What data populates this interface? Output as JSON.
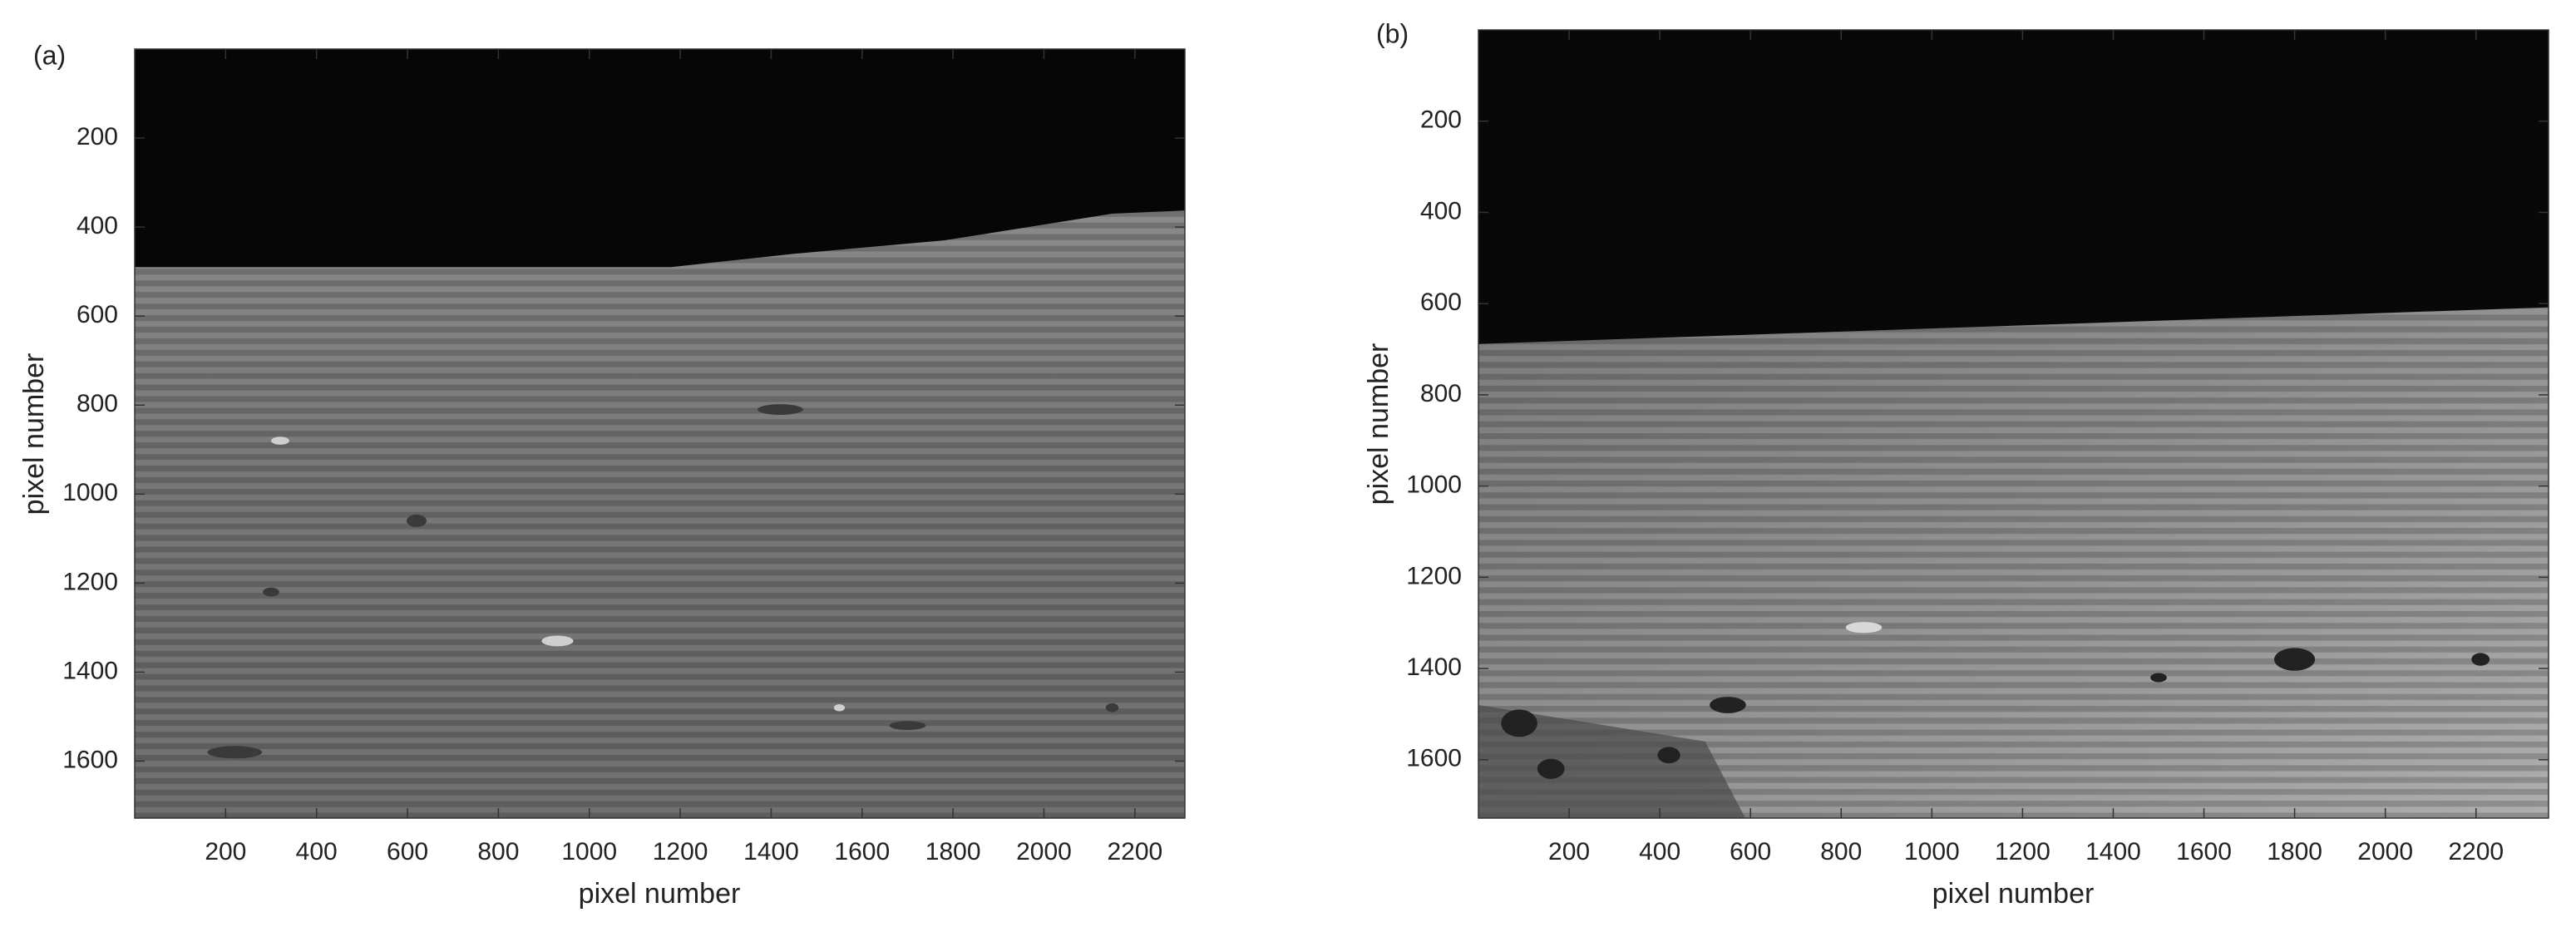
{
  "chart_data": [
    {
      "type": "image",
      "panel_label": "(a)",
      "xlabel": "pixel number",
      "ylabel": "pixel number",
      "xlim": [
        0,
        2310
      ],
      "ylim": [
        0,
        1728
      ],
      "xticks": [
        200,
        400,
        600,
        800,
        1000,
        1200,
        1400,
        1600,
        1800,
        2000,
        2200
      ],
      "yticks": [
        200,
        400,
        600,
        800,
        1000,
        1200,
        1400,
        1600
      ]
    },
    {
      "type": "image",
      "panel_label": "(b)",
      "xlabel": "pixel number",
      "ylabel": "pixel number",
      "xlim": [
        0,
        2360
      ],
      "ylim": [
        0,
        1728
      ],
      "xticks": [
        200,
        400,
        600,
        800,
        1000,
        1200,
        1400,
        1600,
        1800,
        2000,
        2200
      ],
      "yticks": [
        200,
        400,
        600,
        800,
        1000,
        1200,
        1400,
        1600
      ]
    }
  ]
}
